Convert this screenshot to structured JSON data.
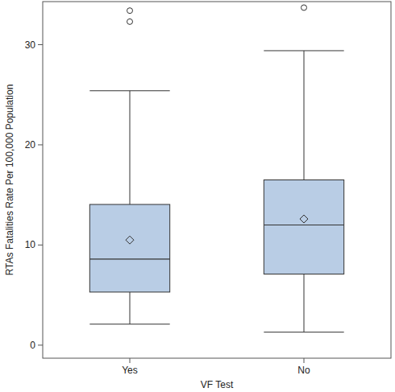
{
  "chart_data": {
    "type": "box",
    "x_label": "VF Test",
    "y_label": "RTAs Fatalities Rate Per 100,000 Population",
    "categories": [
      "Yes",
      "No"
    ],
    "boxes": [
      {
        "min": 2.1,
        "q1": 5.3,
        "median": 8.6,
        "q3": 14.05,
        "max": 25.4,
        "mean": 10.5,
        "outliers": [
          32.3,
          33.4
        ]
      },
      {
        "min": 1.3,
        "q1": 7.1,
        "median": 12.0,
        "q3": 16.5,
        "max": 29.4,
        "mean": 12.6,
        "outliers": [
          33.7
        ]
      }
    ],
    "color": "#b9cde5",
    "ylim": [
      -1.3,
      34.3
    ],
    "yticks": [
      0,
      10,
      20,
      30
    ],
    "grid": false
  }
}
